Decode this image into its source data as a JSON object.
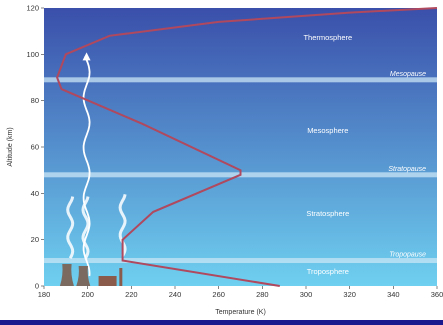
{
  "chart_data": {
    "type": "line",
    "xlabel": "Temperature (K)",
    "ylabel": "Altitude (km)",
    "xlim": [
      180,
      360
    ],
    "ylim": [
      0,
      120
    ],
    "xticks": [
      180,
      200,
      220,
      240,
      260,
      280,
      300,
      320,
      340,
      360
    ],
    "yticks": [
      0,
      20,
      40,
      60,
      80,
      100,
      120
    ],
    "series": [
      {
        "name": "",
        "points": [
          [
            288,
            0
          ],
          [
            216,
            11
          ],
          [
            216,
            20
          ],
          [
            230,
            32
          ],
          [
            270,
            48
          ],
          [
            270,
            50
          ],
          [
            225,
            70
          ],
          [
            188,
            85
          ],
          [
            186,
            90
          ],
          [
            190,
            100
          ],
          [
            210,
            108
          ],
          [
            260,
            114
          ],
          [
            320,
            118
          ],
          [
            360,
            120
          ]
        ]
      }
    ],
    "layers": [
      {
        "label": "Troposphere",
        "altitude": 6
      },
      {
        "label": "Stratosphere",
        "altitude": 31
      },
      {
        "label": "Mesosphere",
        "altitude": 67
      },
      {
        "label": "Thermosphere",
        "altitude": 107
      }
    ],
    "boundaries": [
      {
        "label": "Tropopause",
        "altitude": 11
      },
      {
        "label": "Stratopause",
        "altitude": 48
      },
      {
        "label": "Mesopause",
        "altitude": 89
      }
    ],
    "colors": {
      "curve": "#b0485e",
      "boundary_band": "#c9e6f5",
      "sky_top": "#3a4faa",
      "sky_bottom": "#6fd0f0",
      "frame": "#1a1a8e",
      "axis_text": "#333333"
    }
  }
}
